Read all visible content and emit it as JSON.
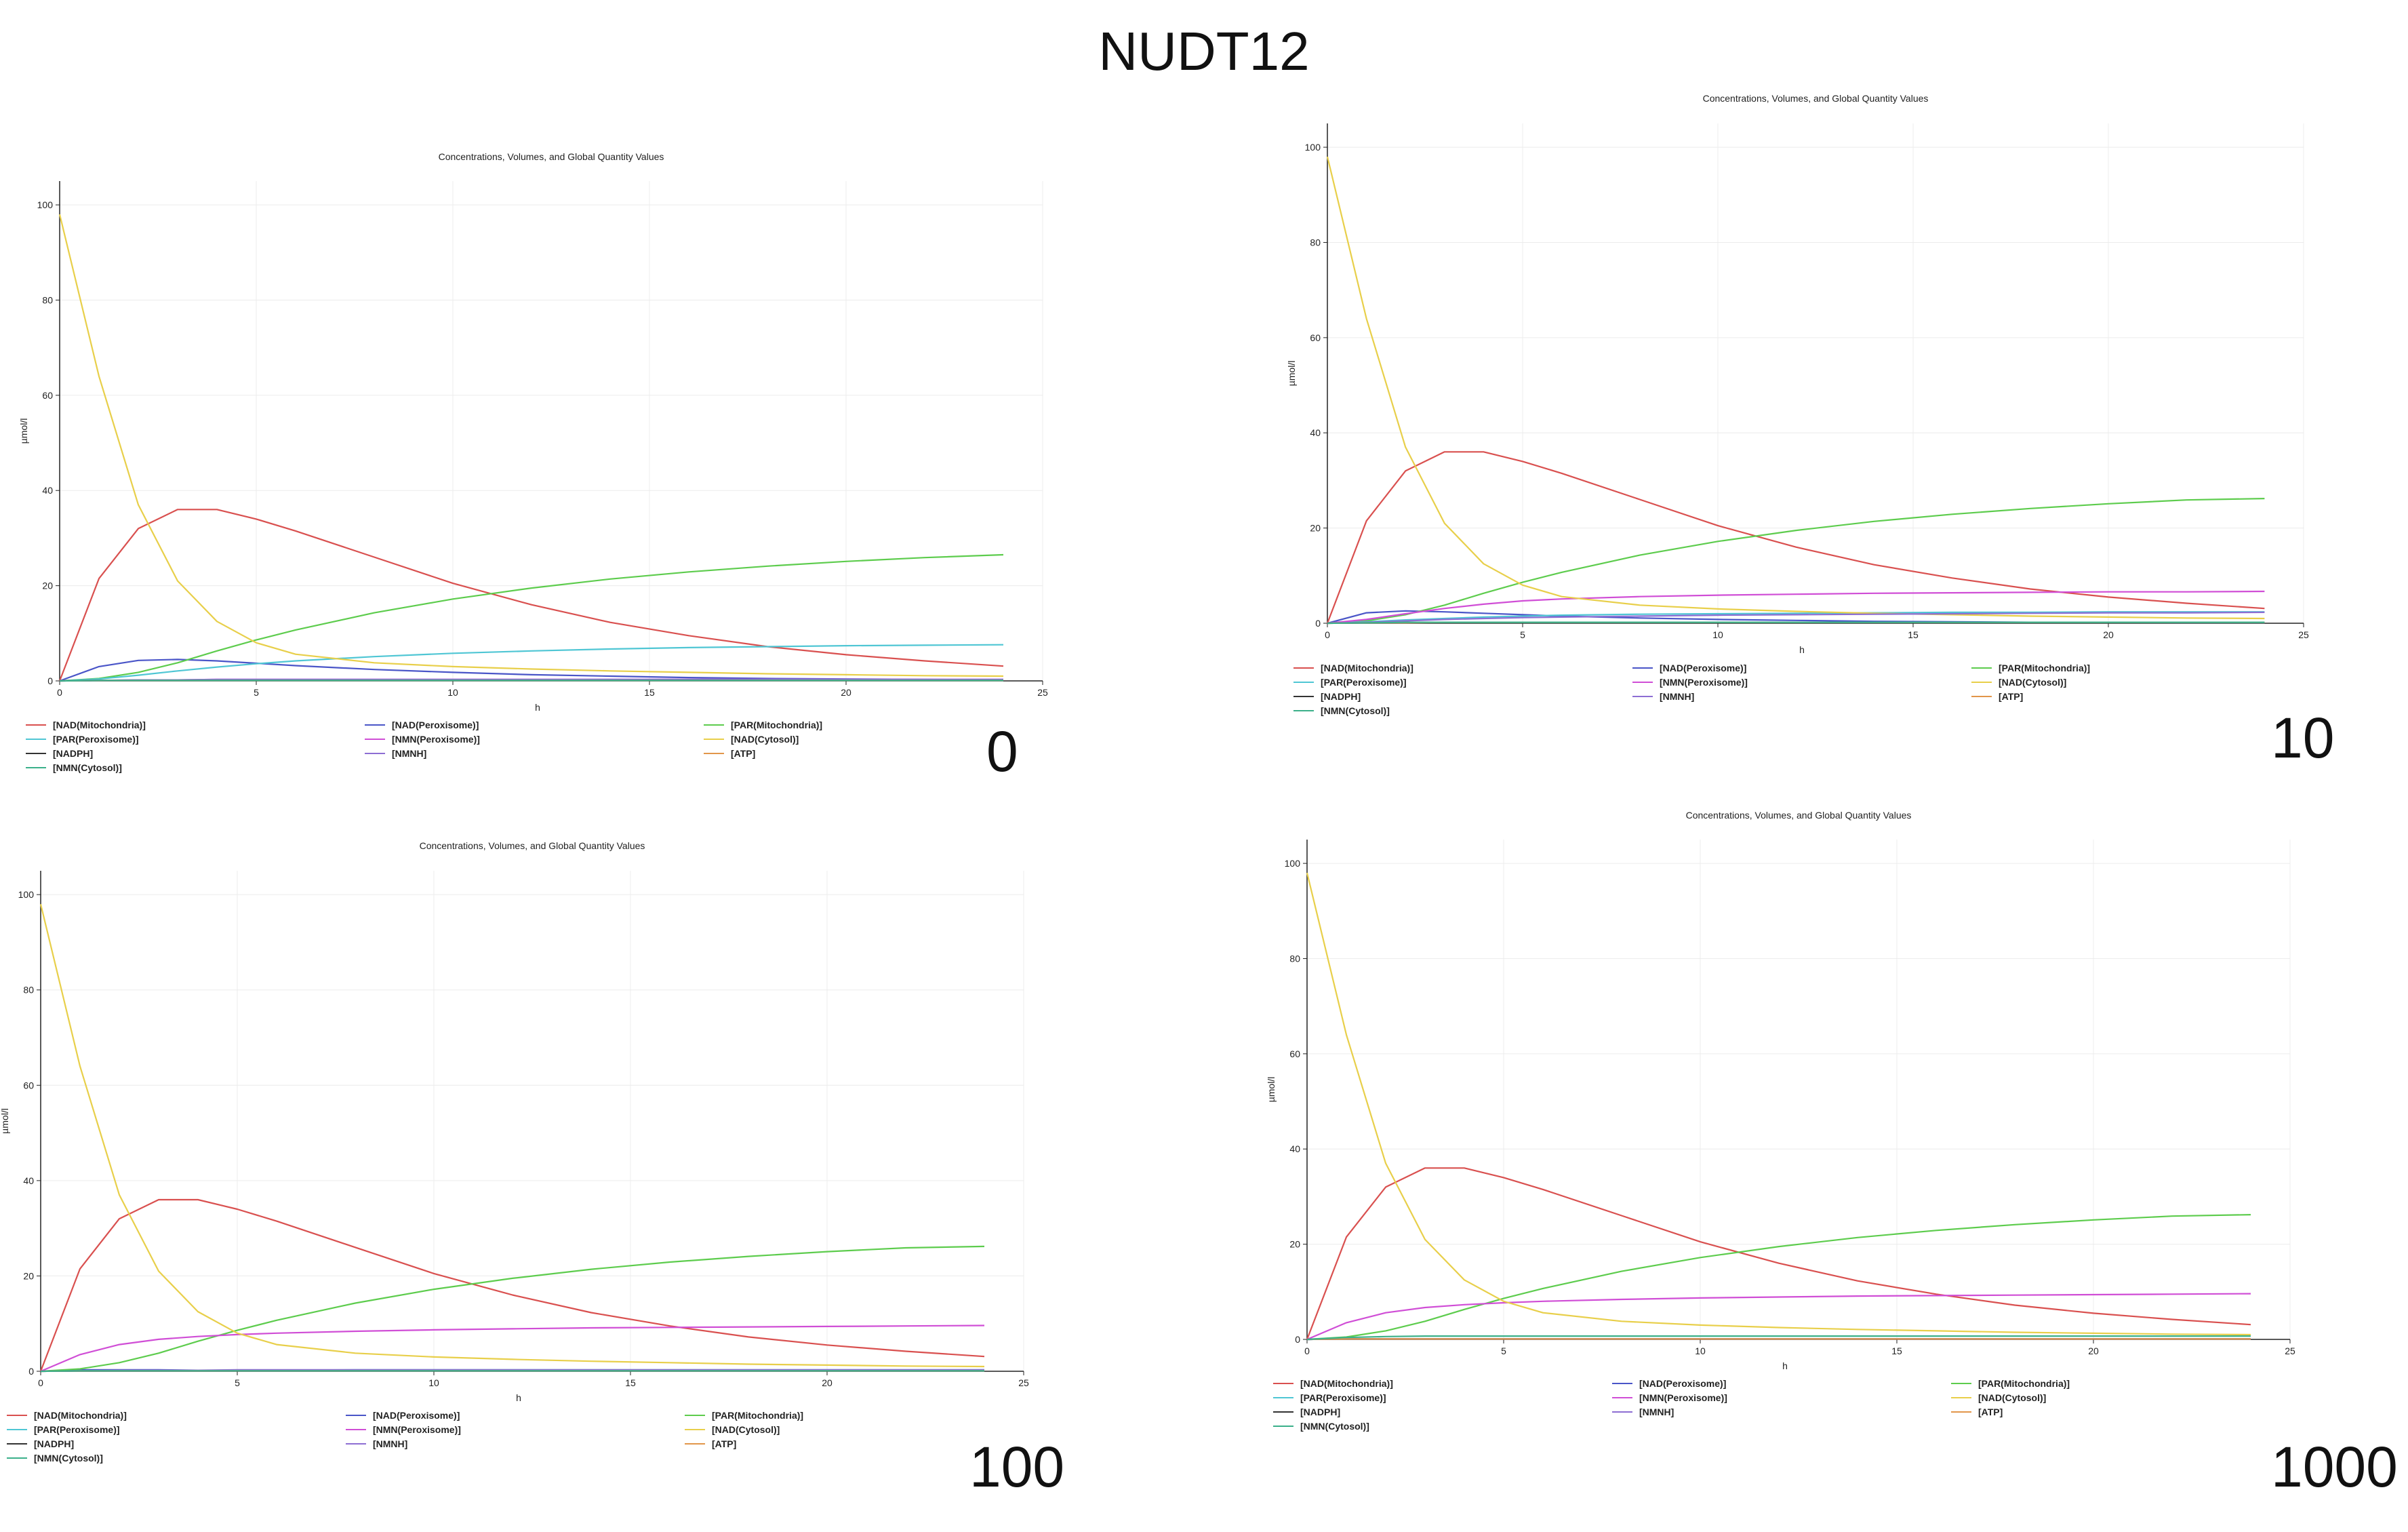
{
  "page": {
    "title": "NUDT12"
  },
  "colors": {
    "NAD(Mitochondria)": "#d9504f",
    "NAD(Peroxisome)": "#4a55c8",
    "PAR(Mitochondria)": "#5dcc4d",
    "PAR(Peroxisome)": "#4fc6d4",
    "NMN(Peroxisome)": "#d04ed6",
    "NAD(Cytosol)": "#e8cf4a",
    "NADPH": "#333333",
    "NMNH": "#8d6ed3",
    "ATP": "#e2964a",
    "NMN(Cytosol)": "#3bb08a"
  },
  "legend": [
    "[NAD(Mitochondria)]",
    "[NAD(Peroxisome)]",
    "[PAR(Mitochondria)]",
    "[PAR(Peroxisome)]",
    "[NMN(Peroxisome)]",
    "[NAD(Cytosol)]",
    "[NADPH]",
    "[NMNH]",
    "[ATP]",
    "[NMN(Cytosol)]"
  ],
  "chart_data": [
    {
      "type": "line",
      "param_label": "0",
      "title": "Concentrations, Volumes, and Global Quantity Values",
      "xlabel": "h",
      "ylabel": "µmol/l",
      "xlim": [
        0,
        25
      ],
      "ylim": [
        0,
        105
      ],
      "xticks": [
        0,
        5,
        10,
        15,
        20,
        25
      ],
      "yticks": [
        0,
        20,
        40,
        60,
        80,
        100
      ],
      "grid": true,
      "x": [
        0,
        1,
        2,
        3,
        4,
        5,
        6,
        8,
        10,
        12,
        14,
        16,
        18,
        20,
        22,
        24
      ],
      "series": [
        {
          "name": "[NAD(Mitochondria)]",
          "values": [
            0,
            21.5,
            32,
            36,
            36,
            34,
            31.5,
            26,
            20.5,
            16,
            12.3,
            9.5,
            7.2,
            5.5,
            4.2,
            3.1
          ]
        },
        {
          "name": "[NAD(Peroxisome)]",
          "values": [
            0,
            3,
            4.3,
            4.5,
            4.2,
            3.7,
            3.2,
            2.4,
            1.8,
            1.3,
            1,
            0.7,
            0.5,
            0.4,
            0.3,
            0.2
          ]
        },
        {
          "name": "[PAR(Mitochondria)]",
          "values": [
            0,
            0.5,
            1.8,
            3.8,
            6.3,
            8.6,
            10.7,
            14.3,
            17.2,
            19.5,
            21.4,
            22.9,
            24.1,
            25.1,
            25.9,
            26.5
          ]
        },
        {
          "name": "[PAR(Peroxisome)]",
          "values": [
            0,
            0.4,
            1.2,
            2.1,
            2.9,
            3.6,
            4.2,
            5.1,
            5.8,
            6.3,
            6.7,
            7,
            7.2,
            7.4,
            7.5,
            7.6
          ]
        },
        {
          "name": "[NMN(Peroxisome)]",
          "values": [
            0,
            0.1,
            0.2,
            0.2,
            0.3,
            0.3,
            0.3,
            0.3,
            0.3,
            0.3,
            0.3,
            0.3,
            0.3,
            0.3,
            0.3,
            0.3
          ]
        },
        {
          "name": "[NAD(Cytosol)]",
          "values": [
            98,
            64,
            37,
            21,
            12.5,
            8,
            5.6,
            3.8,
            3,
            2.5,
            2.1,
            1.8,
            1.5,
            1.3,
            1.1,
            1
          ]
        },
        {
          "name": "[NADPH]",
          "values": [
            0,
            0.1,
            0.1,
            0.1,
            0.1,
            0.1,
            0.1,
            0.1,
            0.1,
            0.1,
            0.1,
            0.1,
            0.1,
            0.1,
            0.1,
            0.1
          ]
        },
        {
          "name": "[NMNH]",
          "values": [
            0,
            0.1,
            0.2,
            0.2,
            0.3,
            0.3,
            0.3,
            0.3,
            0.3,
            0.3,
            0.3,
            0.3,
            0.3,
            0.3,
            0.3,
            0.3
          ]
        },
        {
          "name": "[ATP]",
          "values": [
            0,
            0.1,
            0.1,
            0.1,
            0.1,
            0.1,
            0.1,
            0.1,
            0.1,
            0.1,
            0.1,
            0.1,
            0.1,
            0.1,
            0.1,
            0.1
          ]
        },
        {
          "name": "[NMN(Cytosol)]",
          "values": [
            0,
            0.1,
            0.1,
            0.1,
            0.1,
            0.1,
            0.1,
            0.1,
            0.1,
            0.1,
            0.1,
            0.1,
            0.1,
            0.1,
            0.1,
            0.1
          ]
        }
      ]
    },
    {
      "type": "line",
      "param_label": "10",
      "title": "Concentrations, Volumes, and Global Quantity Values",
      "xlabel": "h",
      "ylabel": "µmol/l",
      "xlim": [
        0,
        25
      ],
      "ylim": [
        0,
        105
      ],
      "xticks": [
        0,
        5,
        10,
        15,
        20,
        25
      ],
      "yticks": [
        0,
        20,
        40,
        60,
        80,
        100
      ],
      "grid": true,
      "x": [
        0,
        1,
        2,
        3,
        4,
        5,
        6,
        8,
        10,
        12,
        14,
        16,
        18,
        20,
        22,
        24
      ],
      "series": [
        {
          "name": "[NAD(Mitochondria)]",
          "values": [
            0,
            21.5,
            32,
            36,
            36,
            34,
            31.5,
            26,
            20.5,
            16,
            12.3,
            9.5,
            7.2,
            5.5,
            4.2,
            3.1
          ]
        },
        {
          "name": "[NAD(Peroxisome)]",
          "values": [
            0,
            2.2,
            2.6,
            2.4,
            2.1,
            1.8,
            1.5,
            1.1,
            0.8,
            0.6,
            0.4,
            0.3,
            0.2,
            0.2,
            0.1,
            0.1
          ]
        },
        {
          "name": "[PAR(Mitochondria)]",
          "values": [
            0,
            0.5,
            1.8,
            3.8,
            6.3,
            8.6,
            10.7,
            14.3,
            17.2,
            19.5,
            21.4,
            22.9,
            24.1,
            25.1,
            25.9,
            26.2
          ]
        },
        {
          "name": "[PAR(Peroxisome)]",
          "values": [
            0,
            0.3,
            0.7,
            1,
            1.3,
            1.5,
            1.7,
            1.9,
            2,
            2.1,
            2.2,
            2.3,
            2.3,
            2.4,
            2.4,
            2.4
          ]
        },
        {
          "name": "[NMN(Peroxisome)]",
          "values": [
            0,
            0.8,
            2,
            3.1,
            4,
            4.7,
            5.1,
            5.6,
            5.9,
            6.1,
            6.3,
            6.4,
            6.5,
            6.6,
            6.6,
            6.7
          ]
        },
        {
          "name": "[NAD(Cytosol)]",
          "values": [
            98,
            64,
            37,
            21,
            12.5,
            8,
            5.6,
            3.8,
            3,
            2.5,
            2.1,
            1.8,
            1.5,
            1.3,
            1.1,
            1
          ]
        },
        {
          "name": "[NADPH]",
          "values": [
            0,
            0.1,
            0.1,
            0.1,
            0.1,
            0.1,
            0.1,
            0.1,
            0.1,
            0.1,
            0.1,
            0.1,
            0.1,
            0.1,
            0.1,
            0.1
          ]
        },
        {
          "name": "[NMNH]",
          "values": [
            0,
            0.2,
            0.5,
            0.8,
            1,
            1.2,
            1.3,
            1.5,
            1.7,
            1.8,
            1.9,
            2,
            2.1,
            2.2,
            2.2,
            2.3
          ]
        },
        {
          "name": "[ATP]",
          "values": [
            0,
            0.1,
            0.1,
            0.2,
            0.2,
            0.2,
            0.2,
            0.2,
            0.2,
            0.2,
            0.2,
            0.2,
            0.2,
            0.2,
            0.2,
            0.2
          ]
        },
        {
          "name": "[NMN(Cytosol)]",
          "values": [
            0,
            0.1,
            0.2,
            0.2,
            0.2,
            0.2,
            0.2,
            0.2,
            0.2,
            0.2,
            0.2,
            0.2,
            0.2,
            0.2,
            0.2,
            0.2
          ]
        }
      ]
    },
    {
      "type": "line",
      "param_label": "100",
      "title": "Concentrations, Volumes, and Global Quantity Values",
      "xlabel": "h",
      "ylabel": "µmol/l",
      "xlim": [
        0,
        25
      ],
      "ylim": [
        0,
        105
      ],
      "xticks": [
        0,
        5,
        10,
        15,
        20,
        25
      ],
      "yticks": [
        0,
        20,
        40,
        60,
        80,
        100
      ],
      "grid": true,
      "x": [
        0,
        1,
        2,
        3,
        4,
        5,
        6,
        8,
        10,
        12,
        14,
        16,
        18,
        20,
        22,
        24
      ],
      "series": [
        {
          "name": "[NAD(Mitochondria)]",
          "values": [
            0,
            21.5,
            32,
            36,
            36,
            34,
            31.5,
            26,
            20.5,
            16,
            12.3,
            9.5,
            7.2,
            5.5,
            4.2,
            3.1
          ]
        },
        {
          "name": "[NAD(Peroxisome)]",
          "values": [
            0,
            0.3,
            0.3,
            0.3,
            0.2,
            0.2,
            0.2,
            0.1,
            0.1,
            0.1,
            0.1,
            0.1,
            0.1,
            0.1,
            0.1,
            0.1
          ]
        },
        {
          "name": "[PAR(Mitochondria)]",
          "values": [
            0,
            0.5,
            1.8,
            3.8,
            6.3,
            8.6,
            10.7,
            14.3,
            17.2,
            19.5,
            21.4,
            22.9,
            24.1,
            25.1,
            25.9,
            26.2
          ]
        },
        {
          "name": "[PAR(Peroxisome)]",
          "values": [
            0,
            0.1,
            0.1,
            0.2,
            0.2,
            0.2,
            0.2,
            0.3,
            0.3,
            0.3,
            0.3,
            0.3,
            0.3,
            0.3,
            0.3,
            0.3
          ]
        },
        {
          "name": "[NMN(Peroxisome)]",
          "values": [
            0,
            3.5,
            5.6,
            6.7,
            7.3,
            7.7,
            8,
            8.4,
            8.7,
            8.9,
            9.1,
            9.2,
            9.3,
            9.4,
            9.5,
            9.6
          ]
        },
        {
          "name": "[NAD(Cytosol)]",
          "values": [
            98,
            64,
            37,
            21,
            12.5,
            8,
            5.6,
            3.8,
            3,
            2.5,
            2.1,
            1.8,
            1.5,
            1.3,
            1.1,
            1
          ]
        },
        {
          "name": "[NADPH]",
          "values": [
            0,
            0.1,
            0.1,
            0.1,
            0.1,
            0.1,
            0.1,
            0.1,
            0.1,
            0.1,
            0.1,
            0.1,
            0.1,
            0.1,
            0.1,
            0.1
          ]
        },
        {
          "name": "[NMNH]",
          "values": [
            0,
            0.1,
            0.2,
            0.2,
            0.2,
            0.3,
            0.3,
            0.3,
            0.3,
            0.3,
            0.3,
            0.3,
            0.3,
            0.3,
            0.3,
            0.3
          ]
        },
        {
          "name": "[ATP]",
          "values": [
            0,
            0.1,
            0.1,
            0.1,
            0.1,
            0.1,
            0.1,
            0.1,
            0.1,
            0.1,
            0.1,
            0.1,
            0.1,
            0.1,
            0.1,
            0.1
          ]
        },
        {
          "name": "[NMN(Cytosol)]",
          "values": [
            0,
            0.1,
            0.1,
            0.1,
            0.1,
            0.1,
            0.1,
            0.1,
            0.1,
            0.1,
            0.1,
            0.1,
            0.1,
            0.1,
            0.1,
            0.1
          ]
        }
      ]
    },
    {
      "type": "line",
      "param_label": "1000",
      "title": "Concentrations, Volumes, and Global Quantity Values",
      "xlabel": "h",
      "ylabel": "µmol/l",
      "xlim": [
        0,
        25
      ],
      "ylim": [
        0,
        105
      ],
      "xticks": [
        0,
        5,
        10,
        15,
        20,
        25
      ],
      "yticks": [
        0,
        20,
        40,
        60,
        80,
        100
      ],
      "grid": true,
      "x": [
        0,
        1,
        2,
        3,
        4,
        5,
        6,
        8,
        10,
        12,
        14,
        16,
        18,
        20,
        22,
        24
      ],
      "series": [
        {
          "name": "[NAD(Mitochondria)]",
          "values": [
            0,
            21.5,
            32,
            36,
            36,
            34,
            31.5,
            26,
            20.5,
            16,
            12.3,
            9.5,
            7.2,
            5.5,
            4.2,
            3.1
          ]
        },
        {
          "name": "[NAD(Peroxisome)]",
          "values": [
            0,
            0.1,
            0.1,
            0.1,
            0.1,
            0.1,
            0.1,
            0.1,
            0.1,
            0.1,
            0.1,
            0.1,
            0.1,
            0.1,
            0.1,
            0.1
          ]
        },
        {
          "name": "[PAR(Mitochondria)]",
          "values": [
            0,
            0.5,
            1.8,
            3.8,
            6.3,
            8.6,
            10.7,
            14.3,
            17.2,
            19.5,
            21.4,
            22.9,
            24.1,
            25.1,
            25.9,
            26.2
          ]
        },
        {
          "name": "[PAR(Peroxisome)]",
          "values": [
            0,
            0.1,
            0.1,
            0.1,
            0.1,
            0.1,
            0.1,
            0.1,
            0.1,
            0.1,
            0.1,
            0.1,
            0.1,
            0.1,
            0.1,
            0.1
          ]
        },
        {
          "name": "[NMN(Peroxisome)]",
          "values": [
            0,
            3.5,
            5.6,
            6.7,
            7.3,
            7.7,
            8,
            8.4,
            8.7,
            8.9,
            9.1,
            9.2,
            9.3,
            9.4,
            9.5,
            9.6
          ]
        },
        {
          "name": "[NAD(Cytosol)]",
          "values": [
            98,
            64,
            37,
            21,
            12.5,
            8,
            5.6,
            3.8,
            3,
            2.5,
            2.1,
            1.8,
            1.5,
            1.3,
            1.1,
            1
          ]
        },
        {
          "name": "[NADPH]",
          "values": [
            0,
            0.1,
            0.1,
            0.1,
            0.1,
            0.1,
            0.1,
            0.1,
            0.1,
            0.1,
            0.1,
            0.1,
            0.1,
            0.1,
            0.1,
            0.1
          ]
        },
        {
          "name": "[NMNH]",
          "values": [
            0,
            0.1,
            0.1,
            0.1,
            0.1,
            0.1,
            0.1,
            0.1,
            0.1,
            0.1,
            0.1,
            0.1,
            0.1,
            0.1,
            0.1,
            0.1
          ]
        },
        {
          "name": "[ATP]",
          "values": [
            0,
            0.1,
            0.1,
            0.1,
            0.1,
            0.1,
            0.1,
            0.1,
            0.1,
            0.1,
            0.1,
            0.1,
            0.1,
            0.1,
            0.1,
            0.1
          ]
        },
        {
          "name": "[NMN(Cytosol)]",
          "values": [
            0,
            0.4,
            0.6,
            0.7,
            0.7,
            0.7,
            0.7,
            0.7,
            0.7,
            0.7,
            0.7,
            0.7,
            0.7,
            0.7,
            0.7,
            0.7
          ]
        }
      ]
    }
  ]
}
